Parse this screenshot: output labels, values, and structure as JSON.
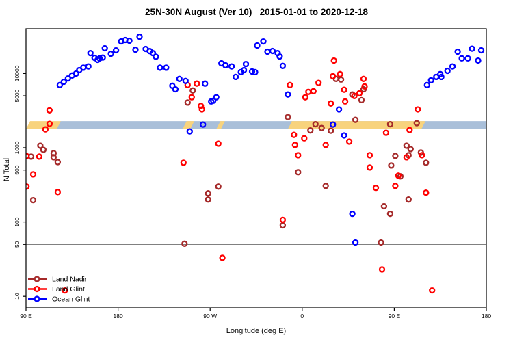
{
  "title": "25N-30N August (Ver 10)   2015-01-01 to 2020-12-18",
  "axes": {
    "x_label": "Longitude (deg E)",
    "y_label": "N Total",
    "x_tick_labels": [
      "90 E",
      "180",
      "90 W",
      "0",
      "90 E",
      "180"
    ],
    "y_tick_labels": [
      "10",
      "50",
      "100",
      "500",
      "1000",
      "5000",
      "10000"
    ]
  },
  "legend": {
    "items": [
      {
        "label": "Land Nadir",
        "color": "#A52A2A"
      },
      {
        "label": "Land Glint",
        "color": "#FF0000"
      },
      {
        "label": "Ocean Glint",
        "color": "#0000FF"
      }
    ]
  },
  "colors": {
    "band_orange": "#F8D37D",
    "band_blue": "#A9BFD9",
    "reference_line": "#808080",
    "axis": "#000000"
  },
  "chart_data": {
    "type": "scatter",
    "title": "25N-30N August (Ver 10)   2015-01-01 to 2020-12-18",
    "xlabel": "Longitude (deg E)",
    "ylabel": "N Total",
    "x_axis_note": "longitude shown as continuous position 0-450 mapping 90E(0) -> 180(90) -> 90W(180) -> 0(270) -> 90E(360) -> 180(450)",
    "xlim": [
      0,
      450
    ],
    "ylim": [
      7,
      40000
    ],
    "log_y": true,
    "x_ticks": [
      {
        "pos": 0,
        "label": "90 E"
      },
      {
        "pos": 90,
        "label": "180"
      },
      {
        "pos": 180,
        "label": "90 W"
      },
      {
        "pos": 270,
        "label": "0"
      },
      {
        "pos": 360,
        "label": "90 E"
      },
      {
        "pos": 450,
        "label": "180"
      }
    ],
    "y_ticks": [
      10,
      50,
      100,
      500,
      1000,
      5000,
      10000
    ],
    "reference_line": {
      "value": 50,
      "color": "#808080"
    },
    "band": {
      "value_range": [
        1780,
        2280
      ],
      "base_color_key": "band_blue",
      "base_from": 29.5,
      "base_to": 450,
      "orange_segments": [
        {
          "from": 0,
          "to": 30
        },
        {
          "from": 153,
          "to": 160.5
        },
        {
          "from": 186,
          "to": 190.5
        },
        {
          "from": 256,
          "to": 386.5
        }
      ]
    },
    "series": [
      {
        "name": "Land Nadir",
        "color": "#A52A2A",
        "points": [
          [
            5,
            760
          ],
          [
            7,
            197
          ],
          [
            14,
            1066
          ],
          [
            17,
            938
          ],
          [
            27,
            845
          ],
          [
            27,
            745
          ],
          [
            31,
            641
          ],
          [
            155,
            51
          ],
          [
            158,
            4060
          ],
          [
            163,
            5900
          ],
          [
            178,
            243
          ],
          [
            178,
            201
          ],
          [
            188,
            300
          ],
          [
            251,
            90
          ],
          [
            256,
            2590
          ],
          [
            266,
            468
          ],
          [
            278,
            1710
          ],
          [
            283,
            2075
          ],
          [
            289,
            1845
          ],
          [
            293,
            306
          ],
          [
            298,
            1695
          ],
          [
            303,
            8450
          ],
          [
            308,
            8280
          ],
          [
            319,
            5200
          ],
          [
            322,
            2375
          ],
          [
            328,
            4370
          ],
          [
            330,
            6130
          ],
          [
            347,
            53
          ],
          [
            350,
            163
          ],
          [
            356,
            2075
          ],
          [
            356,
            129
          ],
          [
            357,
            577
          ],
          [
            361,
            776
          ],
          [
            366,
            412
          ],
          [
            372,
            1066
          ],
          [
            374,
            201
          ],
          [
            374,
            793
          ],
          [
            376,
            959
          ],
          [
            382,
            2138
          ],
          [
            386,
            863
          ],
          [
            391,
            628
          ]
        ]
      },
      {
        "name": "Land Glint",
        "color": "#FF0000",
        "points": [
          [
            0.5,
            772
          ],
          [
            0.5,
            300
          ],
          [
            7,
            438
          ],
          [
            13,
            760
          ],
          [
            19,
            1770
          ],
          [
            23,
            3190
          ],
          [
            23,
            2095
          ],
          [
            31,
            253
          ],
          [
            38,
            12
          ],
          [
            154,
            628
          ],
          [
            158,
            6980
          ],
          [
            162,
            4775
          ],
          [
            167,
            7310
          ],
          [
            171,
            3650
          ],
          [
            172,
            3280
          ],
          [
            188,
            1135
          ],
          [
            192,
            33
          ],
          [
            251,
            107
          ],
          [
            258,
            6980
          ],
          [
            262,
            1490
          ],
          [
            263,
            1090
          ],
          [
            266,
            793
          ],
          [
            272,
            1340
          ],
          [
            273,
            4775
          ],
          [
            276,
            5650
          ],
          [
            281,
            5770
          ],
          [
            286,
            7480
          ],
          [
            293,
            1090
          ],
          [
            298,
            3940
          ],
          [
            300,
            9200
          ],
          [
            301,
            14930
          ],
          [
            307,
            9800
          ],
          [
            311,
            6030
          ],
          [
            312,
            4200
          ],
          [
            316,
            1210
          ],
          [
            321,
            4980
          ],
          [
            326,
            5420
          ],
          [
            330,
            8450
          ],
          [
            331,
            6700
          ],
          [
            336,
            793
          ],
          [
            336,
            542
          ],
          [
            342,
            288
          ],
          [
            348,
            23
          ],
          [
            352,
            1590
          ],
          [
            361,
            306
          ],
          [
            364,
            421
          ],
          [
            372,
            745
          ],
          [
            375,
            1730
          ],
          [
            383,
            3280
          ],
          [
            387,
            793
          ],
          [
            391,
            248
          ],
          [
            397,
            12
          ]
        ]
      },
      {
        "name": "Ocean Glint",
        "color": "#0000FF",
        "points": [
          [
            33,
            6980
          ],
          [
            37,
            7730
          ],
          [
            41,
            8570
          ],
          [
            45,
            9400
          ],
          [
            49,
            10000
          ],
          [
            52,
            11100
          ],
          [
            56,
            11980
          ],
          [
            61,
            12430
          ],
          [
            63,
            18800
          ],
          [
            67,
            16260
          ],
          [
            70,
            15250
          ],
          [
            72,
            15960
          ],
          [
            75,
            16400
          ],
          [
            77,
            21840
          ],
          [
            83,
            18400
          ],
          [
            88,
            20500
          ],
          [
            93,
            27000
          ],
          [
            97,
            28200
          ],
          [
            101,
            27600
          ],
          [
            107,
            20900
          ],
          [
            111,
            31300
          ],
          [
            117,
            21400
          ],
          [
            121,
            20000
          ],
          [
            124,
            18800
          ],
          [
            127,
            16800
          ],
          [
            131,
            11980
          ],
          [
            137,
            11980
          ],
          [
            143,
            6840
          ],
          [
            146,
            6130
          ],
          [
            150,
            8450
          ],
          [
            156,
            7930
          ],
          [
            160,
            1660
          ],
          [
            173,
            2050
          ],
          [
            175,
            7310
          ],
          [
            181,
            4200
          ],
          [
            183,
            4290
          ],
          [
            186,
            4775
          ],
          [
            191,
            13700
          ],
          [
            195,
            12900
          ],
          [
            201,
            12430
          ],
          [
            205,
            8990
          ],
          [
            210,
            10430
          ],
          [
            213,
            11100
          ],
          [
            215,
            13400
          ],
          [
            221,
            10650
          ],
          [
            224,
            10430
          ],
          [
            226,
            23770
          ],
          [
            232,
            26980
          ],
          [
            236,
            19680
          ],
          [
            241,
            20100
          ],
          [
            246,
            18800
          ],
          [
            248,
            16900
          ],
          [
            251,
            12650
          ],
          [
            256,
            5200
          ],
          [
            300,
            2050
          ],
          [
            306,
            3280
          ],
          [
            311,
            1463
          ],
          [
            319,
            129
          ],
          [
            322,
            53
          ],
          [
            392,
            6980
          ],
          [
            396,
            8100
          ],
          [
            401,
            8990
          ],
          [
            405,
            9800
          ],
          [
            406,
            8990
          ],
          [
            412,
            10850
          ],
          [
            417,
            12430
          ],
          [
            422,
            19680
          ],
          [
            426,
            15960
          ],
          [
            432,
            15960
          ],
          [
            436,
            21560
          ],
          [
            442,
            14930
          ],
          [
            445,
            20500
          ]
        ]
      }
    ]
  }
}
